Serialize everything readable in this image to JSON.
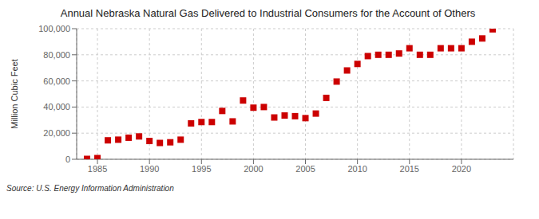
{
  "chart_data": {
    "type": "scatter",
    "title": "Annual Nebraska Natural Gas Delivered to Industrial Consumers for the Account of Others",
    "ylabel": "Million Cubic Feet",
    "annotations": [
      "Source: U.S. Energy Information Administration"
    ],
    "x": [
      1984,
      1985,
      1986,
      1987,
      1988,
      1989,
      1990,
      1991,
      1992,
      1993,
      1994,
      1995,
      1996,
      1997,
      1998,
      1999,
      2000,
      2001,
      2002,
      2003,
      2004,
      2005,
      2006,
      2007,
      2008,
      2009,
      2010,
      2011,
      2012,
      2013,
      2014,
      2015,
      2016,
      2017,
      2018,
      2019,
      2020,
      2021,
      2022,
      2023
    ],
    "values": [
      300,
      900,
      14500,
      15000,
      16500,
      17500,
      14000,
      12500,
      13000,
      15000,
      27500,
      28500,
      28500,
      37000,
      29000,
      45000,
      39500,
      40000,
      32000,
      33500,
      33000,
      31500,
      35000,
      47000,
      59500,
      68000,
      73000,
      79000,
      80000,
      80000,
      81000,
      85000,
      80000,
      80000,
      85000,
      85000,
      85000,
      90000,
      92500,
      99500
    ],
    "color": "#cc0000",
    "marker": "square",
    "xlim": [
      1983,
      2025
    ],
    "xticks": [
      1985,
      1990,
      1995,
      2000,
      2005,
      2010,
      2015,
      2020
    ],
    "ylim": [
      0,
      100000
    ],
    "yticks": [
      0,
      {
        "value": 20000,
        "label": "20,000"
      },
      {
        "value": 40000,
        "label": "40,000"
      },
      {
        "value": 60000,
        "label": "60,000"
      },
      {
        "value": 80000,
        "label": "80,000"
      },
      {
        "value": 100000,
        "label": "100,000"
      }
    ],
    "grid": true
  }
}
